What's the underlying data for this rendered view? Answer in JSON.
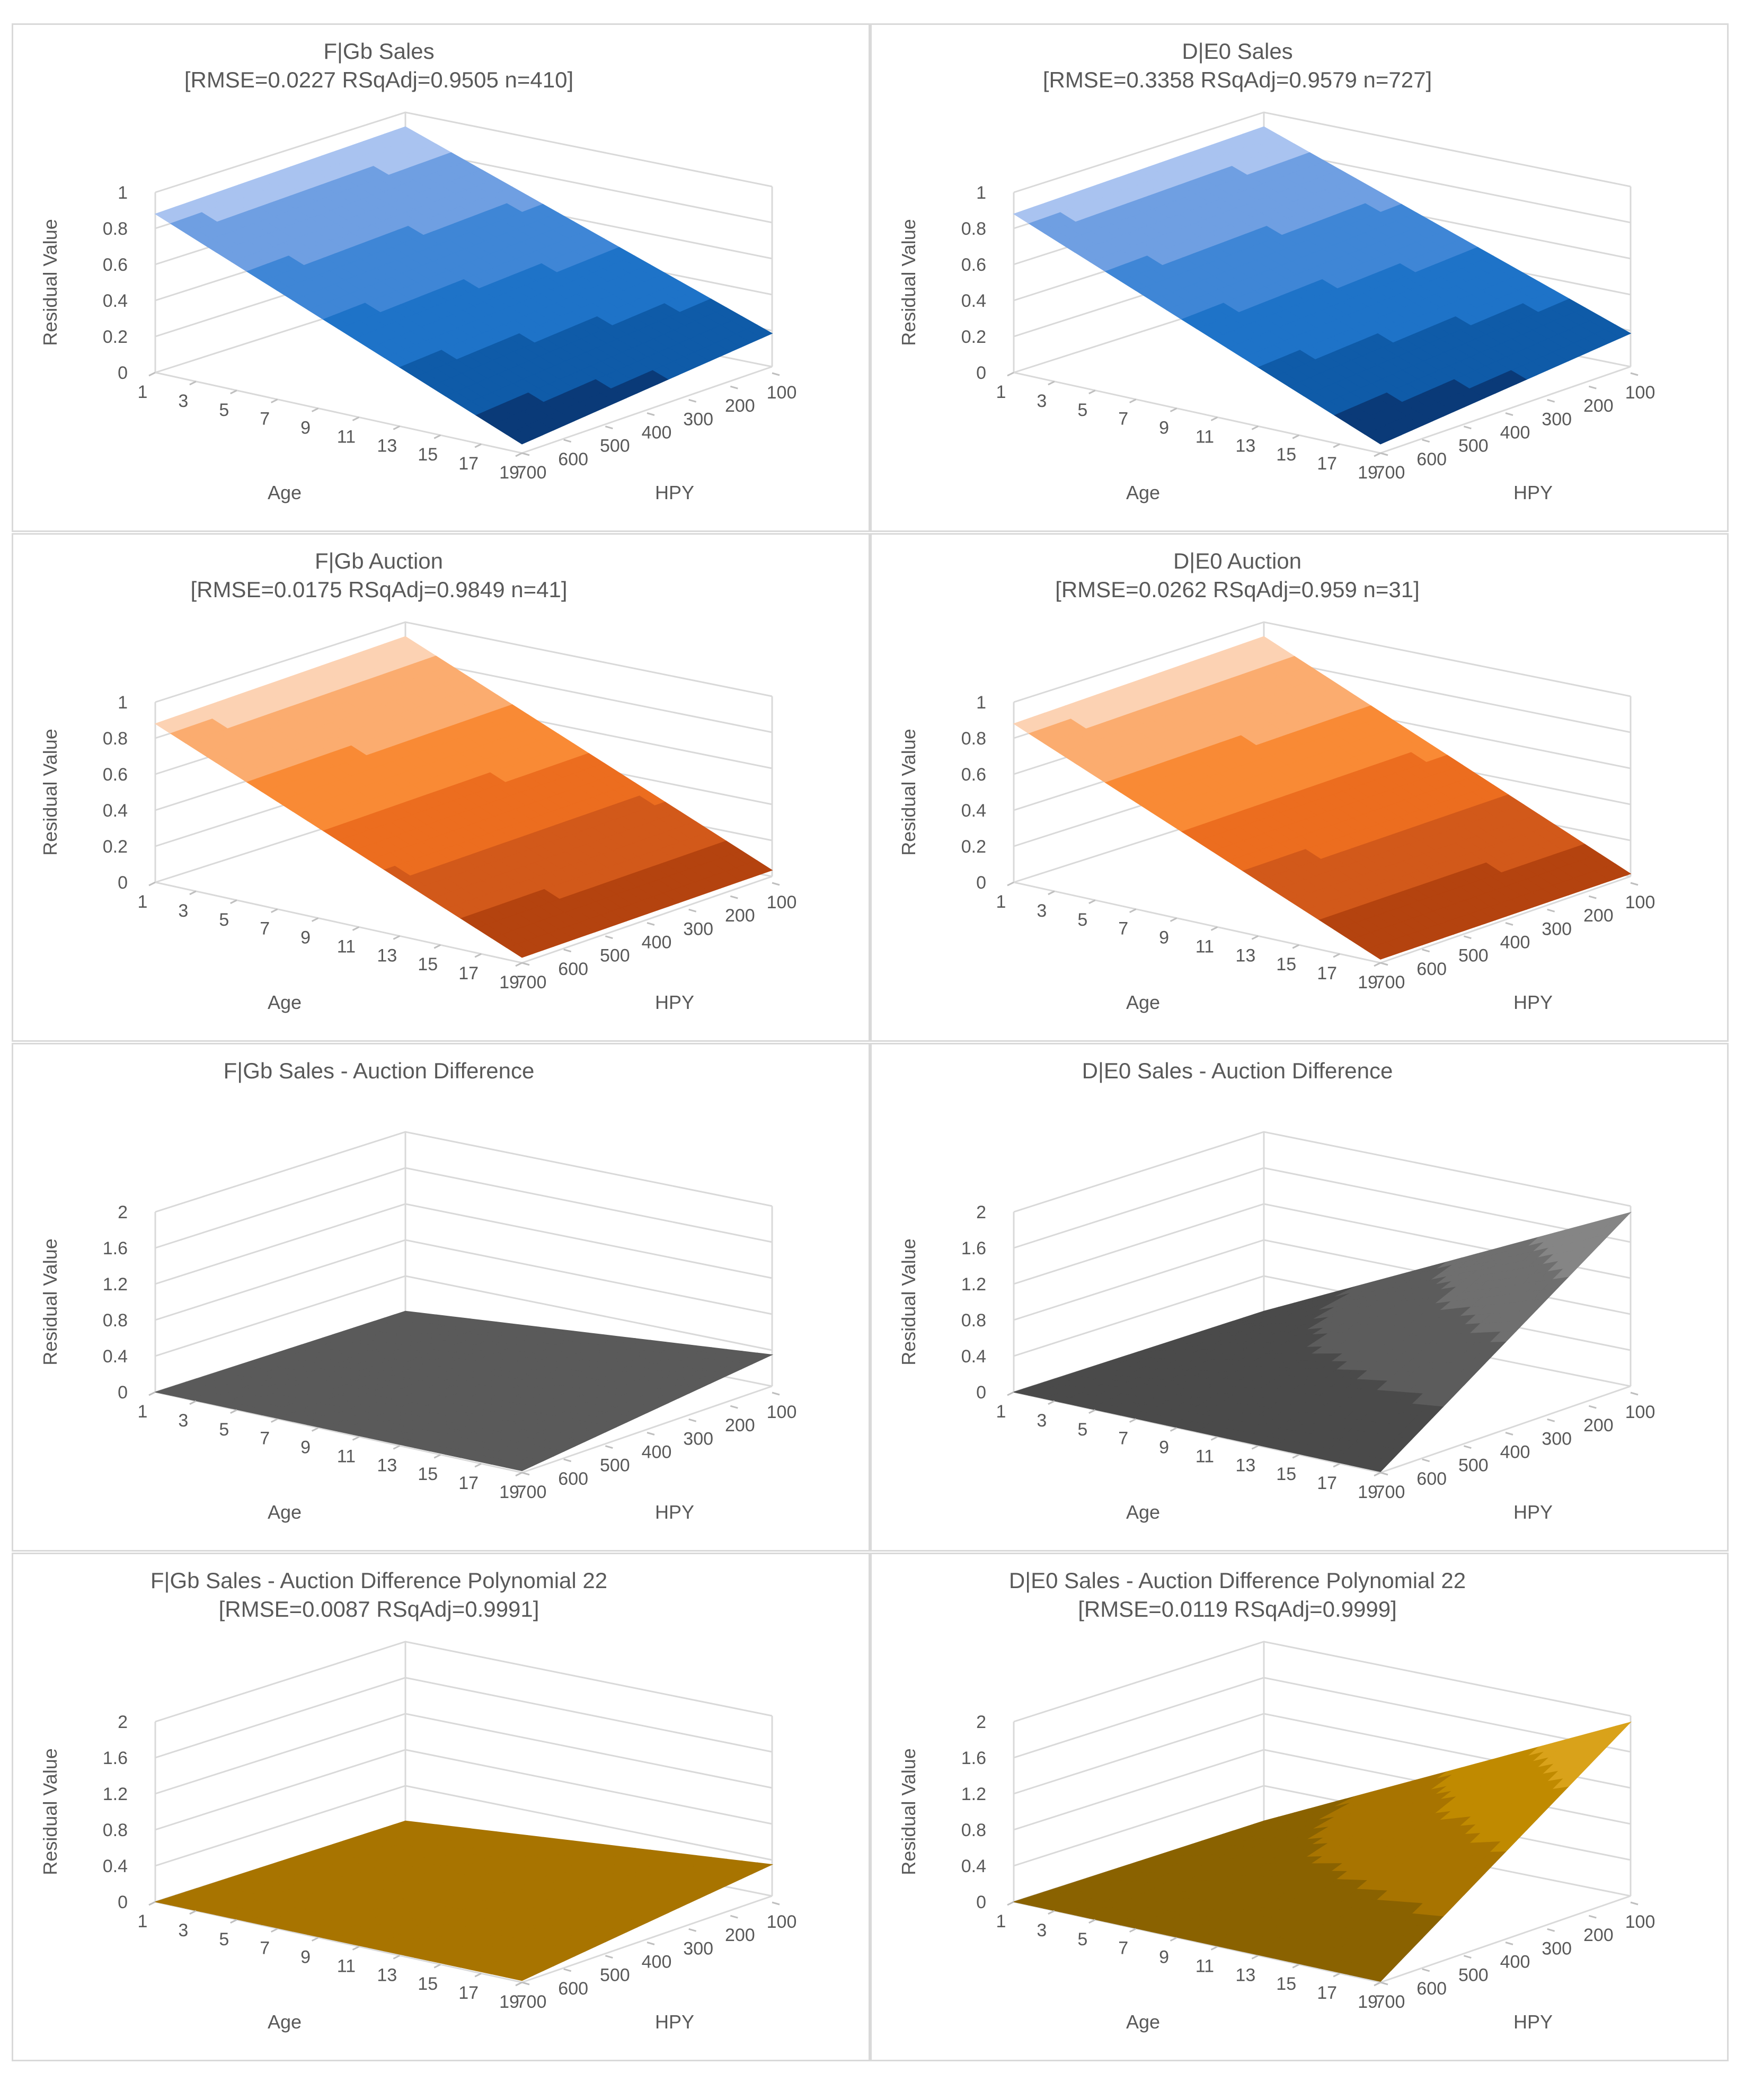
{
  "figure": {
    "layout": "3 columns x 4 rows? no: 2 columns x 4 rows"
  },
  "chart_data": [
    {
      "type": "surface",
      "title": "F|Gb Sales",
      "subtitle": "[RMSE=0.0227 RSqAdj=0.9505 n=410]",
      "zlabel": "Residual Value",
      "xlabel": "Age",
      "ylabel": "HPY",
      "x_ticks": [
        "1",
        "3",
        "5",
        "7",
        "9",
        "11",
        "13",
        "15",
        "17",
        "19"
      ],
      "y_ticks": [
        "700",
        "600",
        "500",
        "400",
        "300",
        "200",
        "100"
      ],
      "z_ticks": [
        "0",
        "0.2",
        "0.4",
        "0.6",
        "0.8",
        "1"
      ],
      "zlim": [
        0,
        1
      ],
      "x_range": [
        1,
        19
      ],
      "y_range": [
        100,
        700
      ],
      "corners": {
        "age1_hpy100": 0.92,
        "age1_hpy700": 0.88,
        "age19_hpy100": 0.22,
        "age19_hpy700": 0.05
      },
      "colors": [
        "#0a3a78",
        "#0f5ba8",
        "#1e73c8",
        "#3f86d6",
        "#6f9fe2",
        "#a9c3f0"
      ]
    },
    {
      "type": "surface",
      "title": "D|E0 Sales",
      "subtitle": "[RMSE=0.3358 RSqAdj=0.9579 n=727]",
      "zlabel": "Residual Value",
      "xlabel": "Age",
      "ylabel": "HPY",
      "x_ticks": [
        "1",
        "3",
        "5",
        "7",
        "9",
        "11",
        "13",
        "15",
        "17",
        "19"
      ],
      "y_ticks": [
        "700",
        "600",
        "500",
        "400",
        "300",
        "200",
        "100"
      ],
      "z_ticks": [
        "0",
        "0.2",
        "0.4",
        "0.6",
        "0.8",
        "1"
      ],
      "zlim": [
        0,
        1
      ],
      "x_range": [
        1,
        19
      ],
      "y_range": [
        100,
        700
      ],
      "corners": {
        "age1_hpy100": 0.92,
        "age1_hpy700": 0.88,
        "age19_hpy100": 0.22,
        "age19_hpy700": 0.05
      },
      "colors": [
        "#0a3a78",
        "#0f5ba8",
        "#1e73c8",
        "#3f86d6",
        "#6f9fe2",
        "#a9c3f0"
      ]
    },
    {
      "type": "surface",
      "title": "F|Gb Auction",
      "subtitle": "[RMSE=0.0175 RSqAdj=0.9849 n=41]",
      "zlabel": "Residual Value",
      "xlabel": "Age",
      "ylabel": "HPY",
      "x_ticks": [
        "1",
        "3",
        "5",
        "7",
        "9",
        "11",
        "13",
        "15",
        "17",
        "19"
      ],
      "y_ticks": [
        "700",
        "600",
        "500",
        "400",
        "300",
        "200",
        "100"
      ],
      "z_ticks": [
        "0",
        "0.2",
        "0.4",
        "0.6",
        "0.8",
        "1"
      ],
      "zlim": [
        0,
        1
      ],
      "x_range": [
        1,
        19
      ],
      "y_range": [
        100,
        700
      ],
      "corners": {
        "age1_hpy100": 0.92,
        "age1_hpy700": 0.88,
        "age19_hpy100": 0.07,
        "age19_hpy700": 0.03
      },
      "colors": [
        "#b4430f",
        "#d2591a",
        "#ec6d1f",
        "#f98a35",
        "#fbac6f",
        "#fcd2b3"
      ]
    },
    {
      "type": "surface",
      "title": "D|E0 Auction",
      "subtitle": "[RMSE=0.0262 RSqAdj=0.959 n=31]",
      "zlabel": "Residual Value",
      "xlabel": "Age",
      "ylabel": "HPY",
      "x_ticks": [
        "1",
        "3",
        "5",
        "7",
        "9",
        "11",
        "13",
        "15",
        "17",
        "19"
      ],
      "y_ticks": [
        "700",
        "600",
        "500",
        "400",
        "300",
        "200",
        "100"
      ],
      "z_ticks": [
        "0",
        "0.2",
        "0.4",
        "0.6",
        "0.8",
        "1"
      ],
      "zlim": [
        0,
        1
      ],
      "x_range": [
        1,
        19
      ],
      "y_range": [
        100,
        700
      ],
      "corners": {
        "age1_hpy100": 0.92,
        "age1_hpy700": 0.88,
        "age19_hpy100": 0.05,
        "age19_hpy700": 0.02
      },
      "colors": [
        "#b4430f",
        "#d2591a",
        "#ec6d1f",
        "#f98a35",
        "#fbac6f",
        "#fcd2b3"
      ]
    },
    {
      "type": "surface",
      "title": "F|Gb Sales - Auction Difference",
      "subtitle": "",
      "zlabel": "Residual Value",
      "xlabel": "Age",
      "ylabel": "HPY",
      "x_ticks": [
        "1",
        "3",
        "5",
        "7",
        "9",
        "11",
        "13",
        "15",
        "17",
        "19"
      ],
      "y_ticks": [
        "700",
        "600",
        "500",
        "400",
        "300",
        "200",
        "100"
      ],
      "z_ticks": [
        "0",
        "0.4",
        "0.8",
        "1.2",
        "1.6",
        "2"
      ],
      "zlim": [
        0,
        2
      ],
      "x_range": [
        1,
        19
      ],
      "y_range": [
        100,
        700
      ],
      "corners": {
        "age1_hpy100": 0.01,
        "age1_hpy700": 0.0,
        "age19_hpy100": 0.42,
        "age19_hpy700": 0.02
      },
      "colors": [
        "#5a5a5a",
        "#6e6e6e",
        "#888888"
      ]
    },
    {
      "type": "surface",
      "title": "D|E0 Sales - Auction Difference",
      "subtitle": "",
      "zlabel": "Residual Value",
      "xlabel": "Age",
      "ylabel": "HPY",
      "x_ticks": [
        "1",
        "3",
        "5",
        "7",
        "9",
        "11",
        "13",
        "15",
        "17",
        "19"
      ],
      "y_ticks": [
        "700",
        "600",
        "500",
        "400",
        "300",
        "200",
        "100"
      ],
      "z_ticks": [
        "0",
        "0.4",
        "0.8",
        "1.2",
        "1.6",
        "2"
      ],
      "zlim": [
        0,
        2
      ],
      "x_range": [
        1,
        19
      ],
      "y_range": [
        100,
        700
      ],
      "corners": {
        "age1_hpy100": 0.01,
        "age1_hpy700": 0.0,
        "age19_hpy100": 2.0,
        "age19_hpy700": 0.01
      },
      "colors": [
        "#4a4a4a",
        "#5c5c5c",
        "#6f6f6f",
        "#858585"
      ]
    },
    {
      "type": "surface",
      "title": "F|Gb Sales - Auction Difference Polynomial 22",
      "subtitle": "[RMSE=0.0087 RSqAdj=0.9991]",
      "zlabel": "Residual Value",
      "xlabel": "Age",
      "ylabel": "HPY",
      "x_ticks": [
        "1",
        "3",
        "5",
        "7",
        "9",
        "11",
        "13",
        "15",
        "17",
        "19"
      ],
      "y_ticks": [
        "700",
        "600",
        "500",
        "400",
        "300",
        "200",
        "100"
      ],
      "z_ticks": [
        "0",
        "0.4",
        "0.8",
        "1.2",
        "1.6",
        "2"
      ],
      "zlim": [
        0,
        2
      ],
      "x_range": [
        1,
        19
      ],
      "y_range": [
        100,
        700
      ],
      "corners": {
        "age1_hpy100": 0.01,
        "age1_hpy700": 0.0,
        "age19_hpy100": 0.42,
        "age19_hpy700": 0.02
      },
      "colors": [
        "#a87400",
        "#b88300",
        "#cc9600"
      ]
    },
    {
      "type": "surface",
      "title": "D|E0 Sales - Auction Difference Polynomial 22",
      "subtitle": "[RMSE=0.0119 RSqAdj=0.9999]",
      "zlabel": "Residual Value",
      "xlabel": "Age",
      "ylabel": "HPY",
      "x_ticks": [
        "1",
        "3",
        "5",
        "7",
        "9",
        "11",
        "13",
        "15",
        "17",
        "19"
      ],
      "y_ticks": [
        "700",
        "600",
        "500",
        "400",
        "300",
        "200",
        "100"
      ],
      "z_ticks": [
        "0",
        "0.4",
        "0.8",
        "1.2",
        "1.6",
        "2"
      ],
      "zlim": [
        0,
        2
      ],
      "x_range": [
        1,
        19
      ],
      "y_range": [
        100,
        700
      ],
      "corners": {
        "age1_hpy100": 0.01,
        "age1_hpy700": 0.0,
        "age19_hpy100": 2.0,
        "age19_hpy700": 0.01
      },
      "colors": [
        "#8a6200",
        "#a87400",
        "#c08a00",
        "#d9a21a"
      ]
    }
  ]
}
